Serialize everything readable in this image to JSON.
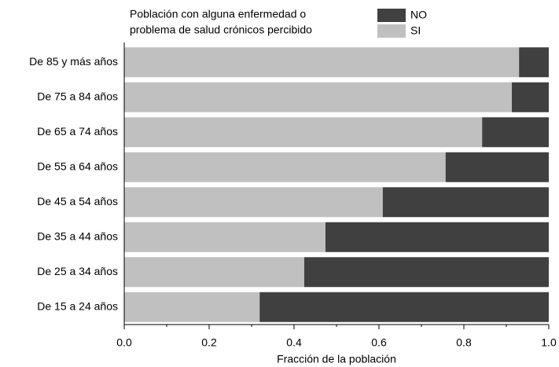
{
  "chart_data": {
    "type": "stacked-barh",
    "legend_title": [
      "Población con alguna enfermedad o",
      "problema de salud crónicos percibido"
    ],
    "xlabel": "Fracción de la población",
    "categories": [
      "De 85 y más años",
      "De 75 a 84 años",
      "De 65 a 74 años",
      "De 55 a 64 años",
      "De 45 a 54 años",
      "De 35 a 44 años",
      "De 25 a 34 años",
      "De 15 a 24 años"
    ],
    "series": [
      {
        "name": "SI",
        "color": "#c0c0c0",
        "values": [
          0.93,
          0.913,
          0.843,
          0.757,
          0.609,
          0.474,
          0.424,
          0.319
        ]
      },
      {
        "name": "NO",
        "color": "#404040",
        "values": [
          0.07,
          0.087,
          0.157,
          0.243,
          0.391,
          0.526,
          0.576,
          0.681
        ]
      }
    ],
    "xlim": [
      0,
      1
    ],
    "xticks": [
      {
        "value": 0,
        "label": "0.0"
      },
      0.2,
      0.4,
      0.6,
      0.8,
      {
        "value": 1,
        "label": "1.0"
      }
    ],
    "legend": "top-right"
  }
}
